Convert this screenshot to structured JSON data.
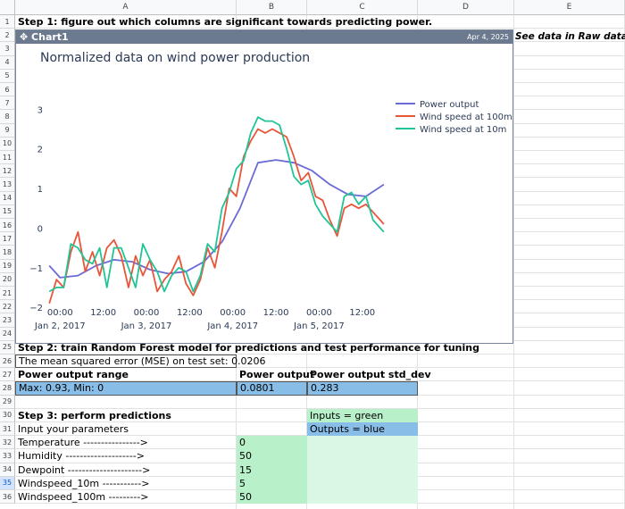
{
  "columns": [
    "A",
    "B",
    "C",
    "D",
    "E"
  ],
  "rows": [
    "1",
    "2",
    "3",
    "4",
    "5",
    "6",
    "7",
    "8",
    "9",
    "10",
    "11",
    "12",
    "13",
    "14",
    "15",
    "16",
    "17",
    "18",
    "19",
    "20",
    "21",
    "22",
    "23",
    "24",
    "25",
    "26",
    "27",
    "28",
    "29",
    "30",
    "31",
    "32",
    "33",
    "34",
    "35",
    "36"
  ],
  "step1": "Step 1: figure out which columns are significant towards predicting power.",
  "chart_widget": {
    "title": "Chart1",
    "date": "Apr 4, 2025"
  },
  "side_note": "See data in Raw data tab",
  "step2": "Step 2: train Random Forest model for predictions and test performance for tuning",
  "mse_text": "The mean squared error (MSE) on test set: 0.0206",
  "table": {
    "headers": [
      "Power output range",
      "Power output",
      "Power output std_dev"
    ],
    "values": [
      "Max: 0.93, Min: 0",
      "0.0801",
      "0.283"
    ]
  },
  "step3": "Step 3: perform predictions",
  "input_label": "Input your parameters",
  "legend_inputs": "Inputs = green",
  "legend_outputs": "Outputs = blue",
  "params": [
    {
      "label": "Temperature ---------------->",
      "value": "0"
    },
    {
      "label": "Humidity -------------------->",
      "value": "50"
    },
    {
      "label": "Dewpoint --------------------->",
      "value": "15"
    },
    {
      "label": "Windspeed_10m ----------->",
      "value": "5"
    },
    {
      "label": "Windspeed_100m --------->",
      "value": "50"
    }
  ],
  "colors": {
    "power": "#6b6bd6",
    "wind100": "#e8563a",
    "wind10": "#21c496",
    "header": "#6c7a8f"
  },
  "chart_data": {
    "type": "line",
    "title": "Normalized data on wind power production",
    "xlabel": "",
    "ylabel": "",
    "ylim": [
      -2.2,
      3.3
    ],
    "y_ticks": [
      3,
      2,
      1,
      0,
      -1,
      -2
    ],
    "x_ticks": [
      {
        "hours": 0,
        "label": "00:00",
        "sub": "Jan 2, 2017"
      },
      {
        "hours": 12,
        "label": "12:00",
        "sub": ""
      },
      {
        "hours": 24,
        "label": "00:00",
        "sub": "Jan 3, 2017"
      },
      {
        "hours": 36,
        "label": "12:00",
        "sub": ""
      },
      {
        "hours": 48,
        "label": "00:00",
        "sub": "Jan 4, 2017"
      },
      {
        "hours": 60,
        "label": "12:00",
        "sub": ""
      },
      {
        "hours": 72,
        "label": "00:00",
        "sub": "Jan 5, 2017"
      },
      {
        "hours": 84,
        "label": "12:00",
        "sub": ""
      }
    ],
    "xlim": [
      -3.3,
      92
    ],
    "legend": "right",
    "series": [
      {
        "name": "Power output",
        "x": [
          -3,
          0,
          5,
          10,
          15,
          20,
          25,
          30,
          35,
          40,
          45,
          50,
          55,
          60,
          65,
          70,
          75,
          80,
          85,
          90
        ],
        "y": [
          -0.95,
          -1.25,
          -1.2,
          -0.95,
          -0.8,
          -0.85,
          -1.05,
          -1.15,
          -1.1,
          -0.85,
          -0.35,
          0.5,
          1.65,
          1.72,
          1.65,
          1.45,
          1.1,
          0.85,
          0.8,
          1.1
        ]
      },
      {
        "name": "Wind speed at 100m",
        "x": [
          -3,
          -1,
          1,
          3,
          5,
          7,
          9,
          11,
          13,
          15,
          17,
          19,
          21,
          23,
          25,
          27,
          29,
          31,
          33,
          35,
          37,
          39,
          41,
          43,
          45,
          47,
          49,
          51,
          53,
          55,
          57,
          59,
          61,
          63,
          65,
          67,
          69,
          71,
          73,
          75,
          77,
          79,
          81,
          83,
          85,
          87,
          89,
          90
        ],
        "y": [
          -1.9,
          -1.3,
          -1.5,
          -0.6,
          -0.1,
          -1.1,
          -0.6,
          -1.2,
          -0.5,
          -0.3,
          -0.7,
          -1.5,
          -0.7,
          -1.2,
          -0.8,
          -1.6,
          -1.3,
          -1.1,
          -0.7,
          -1.4,
          -1.7,
          -1.3,
          -0.5,
          -1.0,
          -0.1,
          1.0,
          0.8,
          1.8,
          2.2,
          2.5,
          2.4,
          2.5,
          2.4,
          2.3,
          1.8,
          1.2,
          1.4,
          0.8,
          0.7,
          0.2,
          -0.2,
          0.5,
          0.6,
          0.5,
          0.6,
          0.4,
          0.2,
          0.1
        ]
      },
      {
        "name": "Wind speed at 10m",
        "x": [
          -3,
          -1,
          1,
          3,
          5,
          7,
          9,
          11,
          13,
          15,
          17,
          19,
          21,
          23,
          25,
          27,
          29,
          31,
          33,
          35,
          37,
          39,
          41,
          43,
          45,
          47,
          49,
          51,
          53,
          55,
          57,
          59,
          61,
          63,
          65,
          67,
          69,
          71,
          73,
          75,
          77,
          79,
          81,
          83,
          85,
          87,
          89,
          90
        ],
        "y": [
          -1.6,
          -1.5,
          -1.5,
          -0.4,
          -0.5,
          -0.8,
          -0.9,
          -0.5,
          -1.5,
          -0.5,
          -0.5,
          -1.0,
          -1.5,
          -0.4,
          -0.8,
          -1.1,
          -1.6,
          -1.2,
          -1.0,
          -1.1,
          -1.6,
          -1.2,
          -0.4,
          -0.6,
          0.5,
          0.9,
          1.5,
          1.7,
          2.4,
          2.8,
          2.7,
          2.7,
          2.6,
          2.0,
          1.3,
          1.1,
          1.2,
          0.6,
          0.3,
          0.1,
          -0.1,
          0.8,
          0.9,
          0.6,
          0.8,
          0.2,
          0.0,
          -0.1
        ]
      }
    ]
  }
}
